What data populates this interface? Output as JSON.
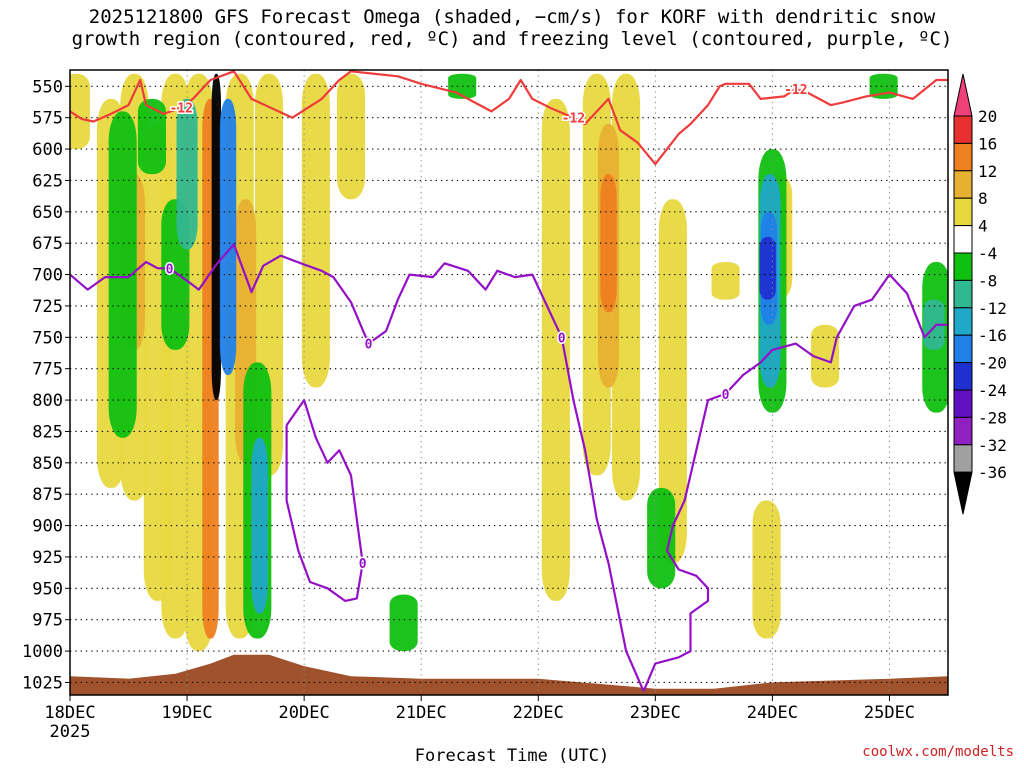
{
  "header": {
    "title_line1": "2025121800 GFS Forecast Omega (shaded, −cm/s) for KORF with dendritic snow",
    "title_line2": "growth region (contoured, red, ºC) and freezing level (contoured, purple, ºC)"
  },
  "footer": {
    "credit": "coolwx.com/modelts"
  },
  "chart_data": {
    "type": "heatmap",
    "title": "2025121800 GFS Forecast Omega (shaded, −cm/s) for KORF with dendritic snow growth region (contoured, red, ºC) and freezing level (contoured, purple, ºC)",
    "xlabel": "Forecast Time (UTC)",
    "ylabel": "",
    "x_tick_labels": [
      "18DEC",
      "19DEC",
      "20DEC",
      "21DEC",
      "22DEC",
      "23DEC",
      "24DEC",
      "25DEC"
    ],
    "x_year_label": "2025",
    "x_range_days": [
      0,
      7.5
    ],
    "y_tick_labels": [
      550,
      575,
      600,
      625,
      650,
      675,
      700,
      725,
      750,
      775,
      800,
      825,
      850,
      875,
      900,
      925,
      950,
      975,
      1000,
      1025
    ],
    "y_range_hpa": [
      537,
      1035
    ],
    "grid": true,
    "colorbar": {
      "labels": [
        20,
        16,
        12,
        8,
        4,
        -4,
        -8,
        -12,
        -16,
        -20,
        -24,
        -28,
        -32,
        -36
      ],
      "colors": [
        "#f0407a",
        "#e83030",
        "#ee8020",
        "#e8b030",
        "#e8d840",
        "#ffffff",
        "#10c010",
        "#30b890",
        "#20a8c8",
        "#2080e8",
        "#2030d0",
        "#6010c0",
        "#9020c0",
        "#a0a0a0",
        "#000000"
      ]
    },
    "contours": [
      {
        "name": "dendritic snow growth region",
        "color": "#ee3b3b",
        "level_label": "-12",
        "points": [
          [
            0,
            570
          ],
          [
            0.1,
            576
          ],
          [
            0.2,
            578
          ],
          [
            0.35,
            572
          ],
          [
            0.5,
            565
          ],
          [
            0.6,
            545
          ],
          [
            0.65,
            565
          ],
          [
            0.8,
            572
          ],
          [
            0.95,
            567
          ],
          [
            1.05,
            560
          ],
          [
            1.2,
            545
          ],
          [
            1.4,
            538
          ],
          [
            1.55,
            560
          ],
          [
            1.9,
            575
          ],
          [
            2.15,
            560
          ],
          [
            2.3,
            545
          ],
          [
            2.4,
            538
          ],
          [
            2.8,
            542
          ],
          [
            3.0,
            548
          ],
          [
            3.3,
            555
          ],
          [
            3.6,
            570
          ],
          [
            3.75,
            560
          ],
          [
            3.85,
            545
          ],
          [
            3.95,
            560
          ],
          [
            4.1,
            567
          ],
          [
            4.3,
            575
          ],
          [
            4.4,
            580
          ],
          [
            4.5,
            570
          ],
          [
            4.6,
            560
          ],
          [
            4.7,
            585
          ],
          [
            4.85,
            595
          ],
          [
            5.0,
            612
          ],
          [
            5.1,
            600
          ],
          [
            5.2,
            588
          ],
          [
            5.3,
            580
          ],
          [
            5.45,
            565
          ],
          [
            5.55,
            550
          ],
          [
            5.6,
            548
          ],
          [
            5.8,
            548
          ],
          [
            5.9,
            560
          ],
          [
            6.1,
            558
          ],
          [
            6.2,
            552
          ],
          [
            6.3,
            555
          ],
          [
            6.5,
            565
          ],
          [
            6.6,
            563
          ],
          [
            6.8,
            558
          ],
          [
            7.0,
            555
          ],
          [
            7.2,
            560
          ],
          [
            7.4,
            545
          ],
          [
            7.5,
            545
          ]
        ]
      },
      {
        "name": "freezing level",
        "color": "#9410c8",
        "level_label": "0",
        "points": [
          [
            0,
            700
          ],
          [
            0.15,
            712
          ],
          [
            0.3,
            702
          ],
          [
            0.5,
            702
          ],
          [
            0.65,
            690
          ],
          [
            0.75,
            695
          ],
          [
            0.85,
            695
          ],
          [
            1.0,
            705
          ],
          [
            1.1,
            712
          ],
          [
            1.25,
            692
          ],
          [
            1.4,
            676
          ],
          [
            1.55,
            714
          ],
          [
            1.65,
            693
          ],
          [
            1.8,
            685
          ],
          [
            2.0,
            692
          ],
          [
            2.15,
            697
          ],
          [
            2.25,
            702
          ],
          [
            2.4,
            722
          ],
          [
            2.55,
            755
          ],
          [
            2.7,
            745
          ],
          [
            2.8,
            720
          ],
          [
            2.9,
            700
          ],
          [
            3.1,
            702
          ],
          [
            3.2,
            691
          ],
          [
            3.4,
            697
          ],
          [
            3.55,
            712
          ],
          [
            3.65,
            697
          ],
          [
            3.8,
            702
          ],
          [
            3.95,
            700
          ],
          [
            4.05,
            720
          ],
          [
            4.2,
            750
          ],
          [
            4.3,
            800
          ],
          [
            4.4,
            840
          ],
          [
            4.5,
            895
          ],
          [
            4.6,
            930
          ],
          [
            4.75,
            1000
          ],
          [
            4.9,
            1032
          ]
        ]
      },
      {
        "name": "freezing level (east)",
        "color": "#9410c8",
        "level_label": "0",
        "points": [
          [
            4.9,
            1032
          ],
          [
            5.0,
            1010
          ],
          [
            5.2,
            1005
          ],
          [
            5.3,
            1000
          ],
          [
            5.3,
            970
          ],
          [
            5.45,
            960
          ],
          [
            5.45,
            950
          ],
          [
            5.35,
            940
          ],
          [
            5.2,
            935
          ],
          [
            5.1,
            920
          ],
          [
            5.15,
            900
          ],
          [
            5.25,
            880
          ],
          [
            5.35,
            840
          ],
          [
            5.45,
            800
          ],
          [
            5.6,
            795
          ],
          [
            5.75,
            780
          ],
          [
            5.9,
            770
          ],
          [
            6.0,
            760
          ],
          [
            6.2,
            755
          ],
          [
            6.35,
            765
          ],
          [
            6.5,
            770
          ],
          [
            6.55,
            750
          ],
          [
            6.7,
            725
          ],
          [
            6.85,
            720
          ],
          [
            7.0,
            700
          ],
          [
            7.15,
            715
          ],
          [
            7.3,
            750
          ],
          [
            7.4,
            740
          ],
          [
            7.5,
            740
          ]
        ]
      },
      {
        "name": "freezing level pocket",
        "color": "#9410c8",
        "level_label": "0",
        "points": [
          [
            1.85,
            820
          ],
          [
            2.0,
            800
          ],
          [
            2.1,
            830
          ],
          [
            2.2,
            850
          ],
          [
            2.3,
            840
          ],
          [
            2.4,
            860
          ],
          [
            2.45,
            895
          ],
          [
            2.5,
            930
          ],
          [
            2.45,
            958
          ],
          [
            2.35,
            960
          ],
          [
            2.2,
            950
          ],
          [
            2.05,
            945
          ],
          [
            1.95,
            920
          ],
          [
            1.85,
            880
          ],
          [
            1.85,
            820
          ]
        ]
      }
    ],
    "omega_shading": [
      {
        "day": 0.05,
        "p_top": 540,
        "p_bottom": 600,
        "value": 6
      },
      {
        "day": 0.35,
        "p_top": 560,
        "p_bottom": 870,
        "value": 6
      },
      {
        "day": 0.55,
        "p_top": 540,
        "p_bottom": 880,
        "value": 6
      },
      {
        "day": 0.75,
        "p_top": 580,
        "p_bottom": 960,
        "value": 6
      },
      {
        "day": 0.9,
        "p_top": 540,
        "p_bottom": 990,
        "value": 6
      },
      {
        "day": 1.1,
        "p_top": 540,
        "p_bottom": 1000,
        "value": 6
      },
      {
        "day": 1.45,
        "p_top": 540,
        "p_bottom": 990,
        "value": 6
      },
      {
        "day": 1.7,
        "p_top": 540,
        "p_bottom": 860,
        "value": 6
      },
      {
        "day": 2.1,
        "p_top": 540,
        "p_bottom": 790,
        "value": 6
      },
      {
        "day": 2.4,
        "p_top": 540,
        "p_bottom": 640,
        "value": 6
      },
      {
        "day": 4.15,
        "p_top": 560,
        "p_bottom": 960,
        "value": 6
      },
      {
        "day": 4.5,
        "p_top": 540,
        "p_bottom": 860,
        "value": 6
      },
      {
        "day": 4.75,
        "p_top": 540,
        "p_bottom": 880,
        "value": 6
      },
      {
        "day": 5.15,
        "p_top": 640,
        "p_bottom": 930,
        "value": 6
      },
      {
        "day": 5.6,
        "p_top": 690,
        "p_bottom": 720,
        "value": 6
      },
      {
        "day": 6.05,
        "p_top": 620,
        "p_bottom": 720,
        "value": 6
      },
      {
        "day": 5.95,
        "p_top": 880,
        "p_bottom": 990,
        "value": 6
      },
      {
        "day": 6.45,
        "p_top": 740,
        "p_bottom": 790,
        "value": 6
      },
      {
        "day": 0.55,
        "p_top": 620,
        "p_bottom": 760,
        "value": 10
      },
      {
        "day": 1.5,
        "p_top": 640,
        "p_bottom": 850,
        "value": 10
      },
      {
        "day": 4.6,
        "p_top": 580,
        "p_bottom": 790,
        "value": 10
      },
      {
        "day": 1.2,
        "p_top": 560,
        "p_bottom": 990,
        "value": 14
      },
      {
        "day": 4.6,
        "p_top": 620,
        "p_bottom": 730,
        "value": 14
      },
      {
        "day": 1.25,
        "p_top": 540,
        "p_bottom": 800,
        "value": -36
      },
      {
        "day": 1.35,
        "p_top": 560,
        "p_bottom": 780,
        "value": -18
      },
      {
        "day": 0.45,
        "p_top": 570,
        "p_bottom": 830,
        "value": -6
      },
      {
        "day": 0.7,
        "p_top": 560,
        "p_bottom": 620,
        "value": -6
      },
      {
        "day": 0.9,
        "p_top": 640,
        "p_bottom": 760,
        "value": -6
      },
      {
        "day": 1.0,
        "p_top": 560,
        "p_bottom": 680,
        "value": -10
      },
      {
        "day": 1.6,
        "p_top": 770,
        "p_bottom": 990,
        "value": -6
      },
      {
        "day": 1.62,
        "p_top": 830,
        "p_bottom": 970,
        "value": -14
      },
      {
        "day": 3.35,
        "p_top": 540,
        "p_bottom": 560,
        "value": -6
      },
      {
        "day": 5.05,
        "p_top": 870,
        "p_bottom": 950,
        "value": -6
      },
      {
        "day": 6.0,
        "p_top": 600,
        "p_bottom": 810,
        "value": -6
      },
      {
        "day": 5.98,
        "p_top": 620,
        "p_bottom": 790,
        "value": -12
      },
      {
        "day": 5.97,
        "p_top": 650,
        "p_bottom": 740,
        "value": -18
      },
      {
        "day": 5.96,
        "p_top": 670,
        "p_bottom": 720,
        "value": -22
      },
      {
        "day": 2.85,
        "p_top": 955,
        "p_bottom": 1000,
        "value": -6
      },
      {
        "day": 7.4,
        "p_top": 690,
        "p_bottom": 810,
        "value": -6
      },
      {
        "day": 7.38,
        "p_top": 720,
        "p_bottom": 760,
        "value": -10
      },
      {
        "day": 6.95,
        "p_top": 540,
        "p_bottom": 560,
        "value": -6
      }
    ],
    "terrain_color": "#a0522d"
  }
}
